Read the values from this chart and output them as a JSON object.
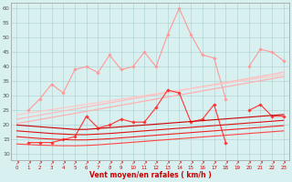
{
  "x": [
    0,
    1,
    2,
    3,
    4,
    5,
    6,
    7,
    8,
    9,
    10,
    11,
    12,
    13,
    14,
    15,
    16,
    17,
    18,
    19,
    20,
    21,
    22,
    23
  ],
  "series": [
    {
      "name": "rafales_zigzag",
      "color": "#FF9999",
      "lw": 0.8,
      "marker": "D",
      "ms": 1.8,
      "y": [
        null,
        25,
        29,
        34,
        31,
        39,
        40,
        38,
        44,
        39,
        40,
        45,
        40,
        51,
        60,
        51,
        44,
        43,
        29,
        null,
        40,
        46,
        45,
        42
      ]
    },
    {
      "name": "trend_pink1",
      "color": "#FFB0B0",
      "lw": 0.9,
      "marker": null,
      "ms": 0,
      "y": [
        20.5,
        21.2,
        21.9,
        22.6,
        23.3,
        24.0,
        24.7,
        25.4,
        26.1,
        26.8,
        27.5,
        28.2,
        28.9,
        29.6,
        30.3,
        31.0,
        31.7,
        32.4,
        33.1,
        33.8,
        34.5,
        35.2,
        35.9,
        36.6
      ]
    },
    {
      "name": "trend_pink2",
      "color": "#FFBBBB",
      "lw": 0.9,
      "marker": null,
      "ms": 0,
      "y": [
        22.0,
        22.7,
        23.4,
        24.1,
        24.8,
        25.5,
        26.2,
        26.9,
        27.6,
        28.3,
        29.0,
        29.7,
        30.4,
        31.1,
        31.8,
        32.5,
        33.2,
        33.9,
        34.6,
        35.3,
        36.0,
        36.7,
        37.4,
        38.1
      ]
    },
    {
      "name": "trend_pink3",
      "color": "#FFC8C8",
      "lw": 0.9,
      "marker": null,
      "ms": 0,
      "y": [
        23.5,
        24.1,
        24.7,
        25.3,
        25.9,
        26.5,
        27.1,
        27.7,
        28.3,
        28.9,
        29.5,
        30.1,
        30.7,
        31.3,
        31.9,
        32.5,
        33.1,
        33.7,
        34.3,
        34.9,
        35.5,
        36.1,
        36.7,
        37.3
      ]
    },
    {
      "name": "vent_moyen_zigzag",
      "color": "#FF3333",
      "lw": 0.8,
      "marker": "D",
      "ms": 1.8,
      "y": [
        null,
        14,
        14,
        14,
        15,
        16,
        23,
        19,
        20,
        22,
        21,
        21,
        26,
        32,
        31,
        21,
        22,
        27,
        14,
        null,
        25,
        27,
        23,
        23
      ]
    },
    {
      "name": "trend_red1",
      "color": "#CC0000",
      "lw": 0.8,
      "marker": null,
      "ms": 0,
      "y": [
        20,
        19.7,
        19.4,
        19.1,
        18.8,
        18.5,
        18.5,
        18.8,
        19.1,
        19.4,
        19.7,
        20.0,
        20.3,
        20.6,
        20.9,
        21.2,
        21.5,
        21.8,
        22.1,
        22.4,
        22.7,
        23.0,
        23.3,
        23.6
      ]
    },
    {
      "name": "trend_red2",
      "color": "#DD1111",
      "lw": 0.8,
      "marker": null,
      "ms": 0,
      "y": [
        18.0,
        17.7,
        17.4,
        17.1,
        16.9,
        16.7,
        16.7,
        16.9,
        17.1,
        17.4,
        17.7,
        18.0,
        18.3,
        18.6,
        18.9,
        19.2,
        19.5,
        19.8,
        20.1,
        20.4,
        20.7,
        21.0,
        21.3,
        21.6
      ]
    },
    {
      "name": "trend_red3",
      "color": "#EE2222",
      "lw": 0.8,
      "marker": null,
      "ms": 0,
      "y": [
        16.0,
        15.7,
        15.4,
        15.2,
        15.0,
        14.9,
        14.9,
        15.1,
        15.3,
        15.6,
        15.9,
        16.2,
        16.5,
        16.8,
        17.1,
        17.4,
        17.7,
        18.0,
        18.3,
        18.6,
        18.9,
        19.2,
        19.5,
        19.8
      ]
    },
    {
      "name": "trend_red4",
      "color": "#FF4444",
      "lw": 0.8,
      "marker": null,
      "ms": 0,
      "y": [
        13.5,
        13.3,
        13.1,
        13.0,
        12.9,
        12.9,
        13.0,
        13.2,
        13.5,
        13.8,
        14.1,
        14.4,
        14.7,
        15.0,
        15.3,
        15.6,
        15.9,
        16.2,
        16.5,
        16.8,
        17.1,
        17.4,
        17.7,
        18.0
      ]
    }
  ],
  "xlabel": "Vent moyen/en rafales ( km/h )",
  "ylim": [
    8,
    62
  ],
  "yticks": [
    10,
    15,
    20,
    25,
    30,
    35,
    40,
    45,
    50,
    55,
    60
  ],
  "xticks": [
    0,
    1,
    2,
    3,
    4,
    5,
    6,
    7,
    8,
    9,
    10,
    11,
    12,
    13,
    14,
    15,
    16,
    17,
    18,
    19,
    20,
    21,
    22,
    23
  ],
  "xtick_labels": [
    "0",
    "1",
    "2",
    "3",
    "4",
    "5",
    "6",
    "7",
    "8",
    "9",
    "10",
    "11",
    "12",
    "13",
    "14",
    "15",
    "16",
    "17",
    "18",
    "19",
    "20",
    "21",
    "22",
    "23"
  ],
  "bg_color": "#D8F0F0",
  "grid_color": "#AACECE"
}
